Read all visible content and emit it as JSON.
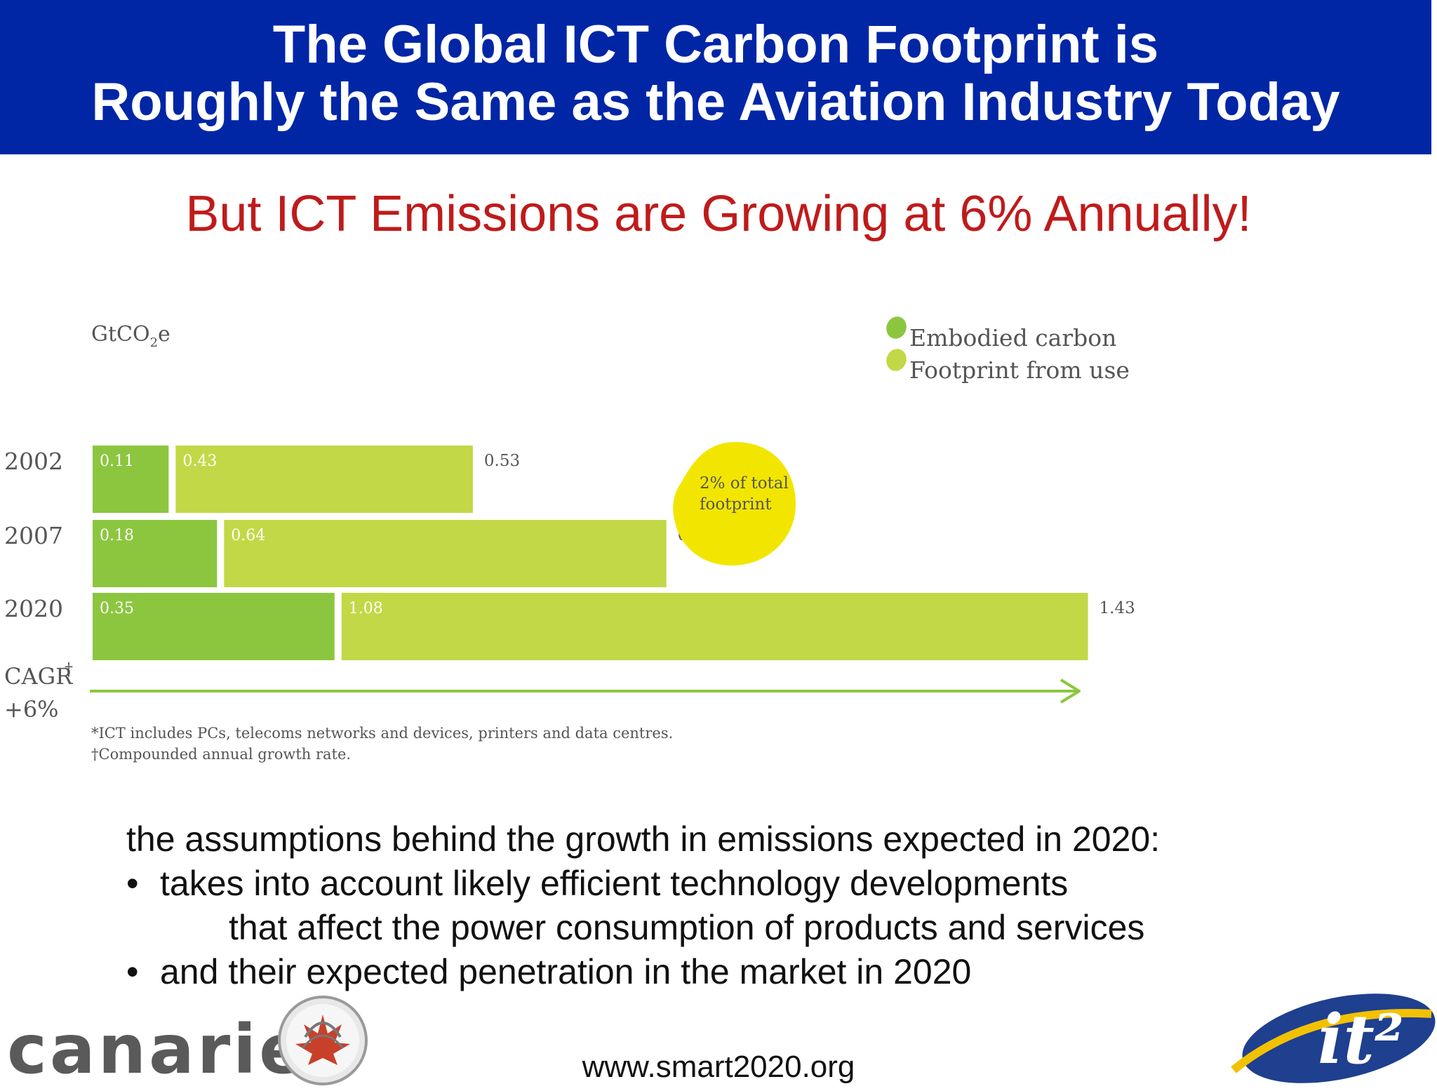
{
  "header": {
    "title_line1": "The Global ICT Carbon Footprint is",
    "title_line2": "Roughly the Same as the Aviation Industry Today"
  },
  "subtitle": "But ICT Emissions are Growing at 6% Annually!",
  "chart_data": {
    "type": "bar",
    "orientation": "horizontal",
    "stacked": true,
    "unit_label": "GtCO2e",
    "categories": [
      "2002",
      "2007",
      "2020"
    ],
    "series": [
      {
        "name": "Embodied carbon",
        "color": "#8cc63f",
        "values": [
          0.11,
          0.18,
          0.35
        ]
      },
      {
        "name": "Footprint from use",
        "color": "#c3d846",
        "values": [
          0.43,
          0.64,
          1.08
        ]
      }
    ],
    "totals": [
      "0.53",
      "0.83",
      "1.43"
    ],
    "segment_labels": [
      [
        "0.11",
        "0.43"
      ],
      [
        "0.18",
        "0.64"
      ],
      [
        "0.35",
        "1.08"
      ]
    ],
    "legend_position": "top-right",
    "annotation": {
      "line1": "2% of total",
      "line2": "footprint",
      "color": "#f2e600"
    },
    "cagr": {
      "label": "CAGR",
      "dagger": "†",
      "value": "+6%",
      "arrow_color": "#8cc63f"
    },
    "footnotes": [
      "*ICT includes PCs, telecoms networks and devices, printers and data centres.",
      "†Compounded annual growth rate."
    ],
    "grid": false
  },
  "notes": {
    "intro": "the assumptions behind the growth in emissions expected in 2020:",
    "bullet_symbol": "•",
    "bullet1_line1": "takes into account likely efficient technology developments",
    "bullet1_line2": "that affect the power consumption of products and services",
    "bullet2": "and their expected penetration in the market in 2020"
  },
  "footer": {
    "url": "www.smart2020.org",
    "canarie_logo_text": "canarie",
    "it2_logo_text": "it²"
  },
  "icons": [
    "canarie-seal-icon",
    "it2-logo-icon"
  ]
}
